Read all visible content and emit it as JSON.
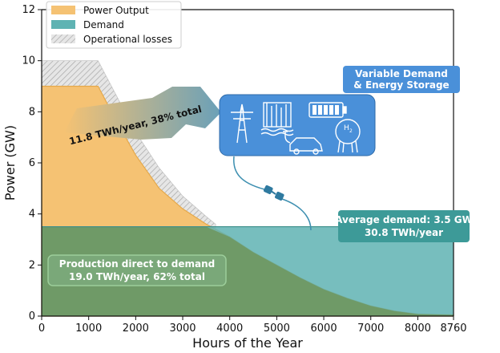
{
  "chart_data": {
    "type": "area",
    "xlabel": "Hours of the Year",
    "ylabel": "Power (GW)",
    "xlim": [
      0,
      8760
    ],
    "ylim": [
      0,
      12
    ],
    "x_ticks": [
      "0",
      "1000",
      "2000",
      "3000",
      "4000",
      "5000",
      "6000",
      "7000",
      "8000",
      "8760"
    ],
    "y_ticks": [
      "0",
      "2",
      "4",
      "6",
      "8",
      "10",
      "12"
    ],
    "grid": false,
    "legend_position": "top-left",
    "series": [
      {
        "name": "Power Output",
        "color": "#f5c273",
        "x": [
          0,
          1200,
          1600,
          2000,
          2500,
          3000,
          3500,
          4000,
          4500,
          5000,
          5500,
          6000,
          6500,
          7000,
          7500,
          8000,
          8760
        ],
        "values": [
          9.0,
          9.0,
          7.6,
          6.3,
          5.0,
          4.2,
          3.6,
          3.1,
          2.5,
          2.0,
          1.5,
          1.05,
          0.7,
          0.4,
          0.2,
          0.08,
          0.05
        ]
      },
      {
        "name": "Demand",
        "color": "#5fb3b3",
        "x": [
          0,
          8760
        ],
        "values": [
          3.5,
          3.5
        ]
      },
      {
        "name": "Operational losses",
        "color": "#c8c8c8",
        "x": [
          0,
          1200,
          1600,
          2000,
          2500,
          3000,
          3500,
          3700
        ],
        "upper": [
          10.0,
          10.0,
          8.6,
          7.2,
          5.8,
          4.7,
          3.9,
          3.6
        ],
        "lower": [
          9.0,
          9.0,
          7.6,
          6.3,
          5.0,
          4.2,
          3.6,
          3.45
        ]
      }
    ],
    "annotations": {
      "arrow_text": "11.8 TWh/year, 38% total",
      "storage_title_line1": "Variable Demand",
      "storage_title_line2": "& Energy Storage",
      "h2_label": "H",
      "h2_sub": "2",
      "avg_demand_line1": "Average demand: 3.5 GW",
      "avg_demand_line2": "30.8 TWh/year",
      "direct_line1": "Production direct to demand",
      "direct_line2": "19.0 TWh/year, 62% total"
    },
    "colors": {
      "storage_box": "#4a90d9",
      "demand_box": "#3d9a98",
      "direct_box": "#7aa879",
      "overlap": "#6f9a67"
    }
  }
}
